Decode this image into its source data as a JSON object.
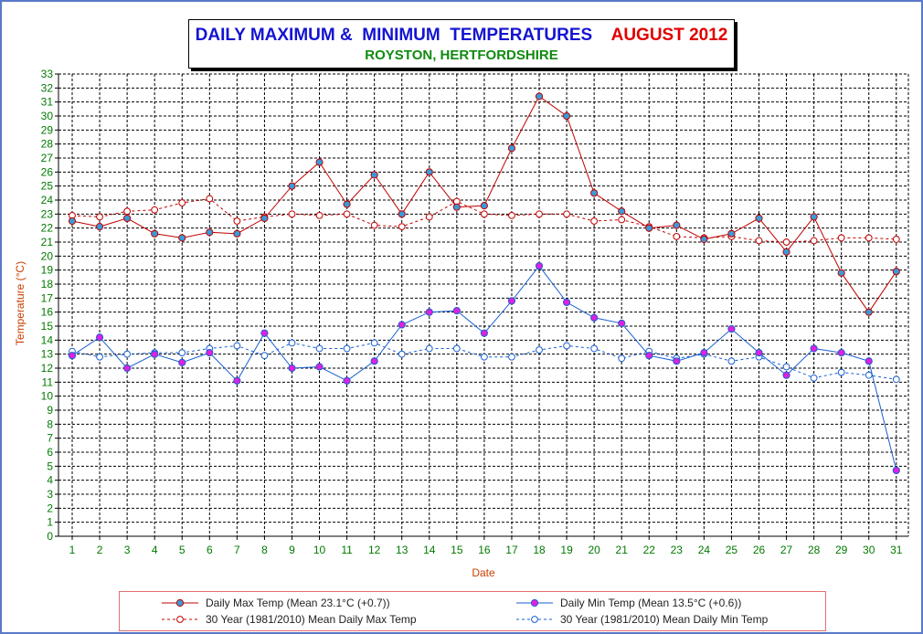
{
  "title": {
    "main": "DAILY MAXIMUM &  MINIMUM  TEMPERATURES",
    "month": "AUGUST 2012",
    "location": "ROYSTON, HERTFORDSHIRE"
  },
  "legend": {
    "max": "Daily Max Temp (Mean 23.1°C (+0.7))",
    "min": "Daily Min Temp (Mean 13.5°C (+0.6))",
    "max30": "30 Year (1981/2010) Mean Daily Max Temp",
    "min30": "30 Year (1981/2010) Mean Daily Min Temp"
  },
  "colors": {
    "max": "#c00000",
    "min": "#1a5fd0",
    "grid": "#000000",
    "axis_text": "#007a00",
    "axis_title": "#c84000"
  },
  "chart_data": {
    "type": "line",
    "xlabel": "Date",
    "ylabel": "Temperature (°C)",
    "ylim": [
      0,
      33
    ],
    "grid": true,
    "legend_position": "bottom",
    "x": [
      1,
      2,
      3,
      4,
      5,
      6,
      7,
      8,
      9,
      10,
      11,
      12,
      13,
      14,
      15,
      16,
      17,
      18,
      19,
      20,
      21,
      22,
      23,
      24,
      25,
      26,
      27,
      28,
      29,
      30,
      31
    ],
    "series": [
      {
        "name": "Daily Max Temp (Mean 23.1°C (+0.7))",
        "style": "solid",
        "color": "#c00000",
        "values": [
          22.5,
          22.1,
          22.7,
          21.6,
          21.3,
          21.7,
          21.6,
          22.7,
          25.0,
          26.7,
          23.7,
          25.8,
          23.0,
          26.0,
          23.5,
          23.6,
          27.7,
          31.4,
          30.0,
          24.5,
          23.2,
          22.0,
          22.2,
          21.2,
          21.6,
          22.7,
          20.3,
          22.8,
          18.8,
          16.0,
          18.9
        ]
      },
      {
        "name": "Daily Min Temp (Mean 13.5°C (+0.6))",
        "style": "solid",
        "color": "#1a5fd0",
        "values": [
          12.9,
          14.2,
          12.0,
          13.0,
          12.4,
          13.1,
          11.1,
          14.5,
          12.0,
          12.1,
          11.1,
          12.5,
          15.1,
          16.0,
          16.1,
          14.5,
          16.8,
          19.3,
          16.7,
          15.6,
          15.2,
          12.9,
          12.5,
          13.1,
          14.8,
          13.1,
          11.5,
          13.4,
          13.1,
          12.5,
          4.7
        ]
      },
      {
        "name": "30 Year (1981/2010) Mean Daily Max Temp",
        "style": "dashed",
        "color": "#c00000",
        "values": [
          22.9,
          22.8,
          23.2,
          23.3,
          23.8,
          24.1,
          22.5,
          22.8,
          23.0,
          22.9,
          23.0,
          22.2,
          22.1,
          22.8,
          23.9,
          23.0,
          22.9,
          23.0,
          23.0,
          22.5,
          22.6,
          22.1,
          21.4,
          21.3,
          21.4,
          21.1,
          21.0,
          21.1,
          21.3,
          21.3,
          21.2
        ]
      },
      {
        "name": "30 Year (1981/2010) Mean Daily Min Temp",
        "style": "dashed",
        "color": "#1a5fd0",
        "values": [
          13.2,
          12.8,
          13.0,
          13.1,
          13.1,
          13.4,
          13.6,
          12.9,
          13.8,
          13.4,
          13.4,
          13.8,
          13.0,
          13.4,
          13.4,
          12.8,
          12.8,
          13.3,
          13.6,
          13.4,
          12.7,
          13.2,
          12.7,
          13.0,
          12.5,
          12.8,
          12.1,
          11.3,
          11.7,
          11.5,
          11.2
        ]
      }
    ]
  }
}
